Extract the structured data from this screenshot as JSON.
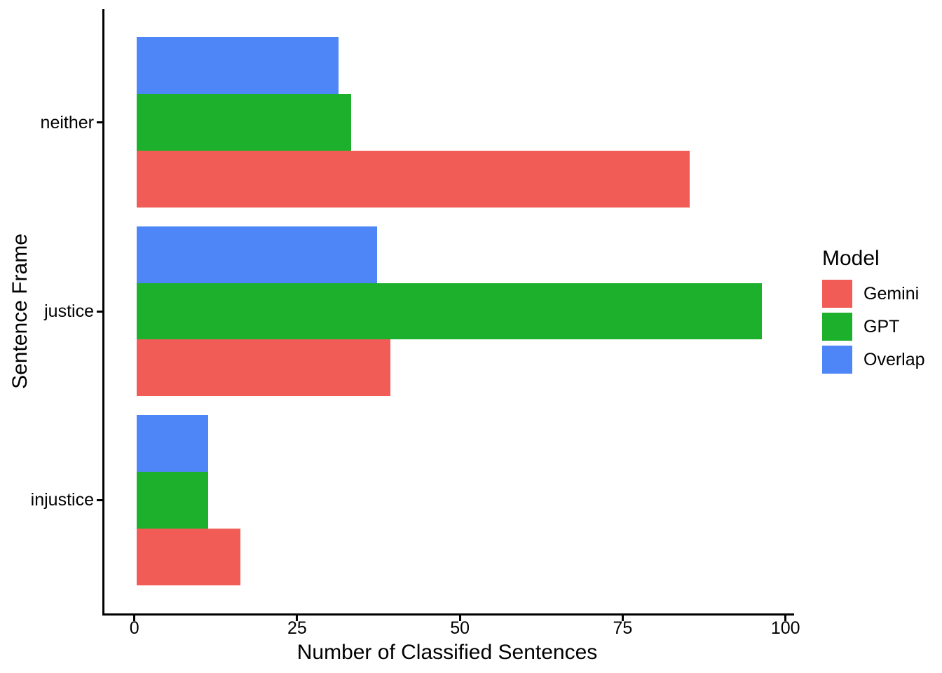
{
  "chart_data": {
    "type": "bar",
    "orientation": "horizontal",
    "xlabel": "Number of Classified Sentences",
    "ylabel": "Sentence Frame",
    "categories": [
      "neither",
      "justice",
      "injustice"
    ],
    "series": [
      {
        "name": "Gemini",
        "color": "#F25C57",
        "values": [
          85,
          39,
          16
        ]
      },
      {
        "name": "GPT",
        "color": "#1CB02C",
        "values": [
          33,
          96,
          11
        ]
      },
      {
        "name": "Overlap",
        "color": "#4F86F7",
        "values": [
          31,
          37,
          11
        ]
      }
    ],
    "x_ticks": [
      0,
      25,
      50,
      75,
      100
    ],
    "xlim": [
      0,
      100
    ],
    "grid": "off",
    "legend": {
      "title": "Model",
      "position": "right",
      "entries": [
        "Gemini",
        "GPT",
        "Overlap"
      ]
    },
    "axis_color": "#000000",
    "background_color": "#ffffff"
  }
}
